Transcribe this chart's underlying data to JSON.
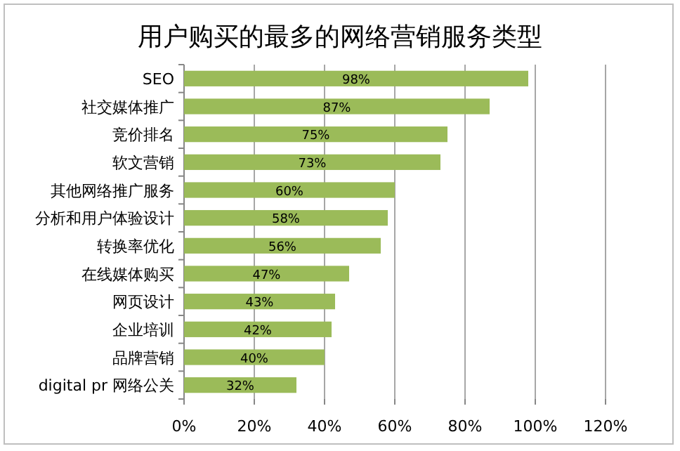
{
  "chart_data": {
    "type": "bar",
    "orientation": "horizontal",
    "title": "用户购买的最多的网络营销服务类型",
    "categories": [
      "SEO",
      "社交媒体推广",
      "竞价排名",
      "软文营销",
      "其他网络推广服务",
      "分析和用户体验设计",
      "转换率优化",
      "在线媒体购买",
      "网页设计",
      "企业培训",
      "品牌营销",
      "digital pr 网络公关"
    ],
    "series": [
      {
        "color": "#9bbb59",
        "values": [
          98,
          87,
          75,
          73,
          60,
          58,
          56,
          47,
          43,
          42,
          40,
          32
        ],
        "value_labels": [
          "98%",
          "87%",
          "75%",
          "73%",
          "60%",
          "58%",
          "56%",
          "47%",
          "43%",
          "42%",
          "40%",
          "32%"
        ]
      }
    ],
    "xlim": [
      0,
      120
    ],
    "xticks": [
      {
        "value": 0,
        "label": "0%"
      },
      {
        "value": 20,
        "label": "20%"
      },
      {
        "value": 40,
        "label": "40%"
      },
      {
        "value": 60,
        "label": "60%"
      },
      {
        "value": 80,
        "label": "80%"
      },
      {
        "value": 100,
        "label": "100%"
      },
      {
        "value": 120,
        "label": "120%"
      }
    ],
    "grid": "x"
  }
}
